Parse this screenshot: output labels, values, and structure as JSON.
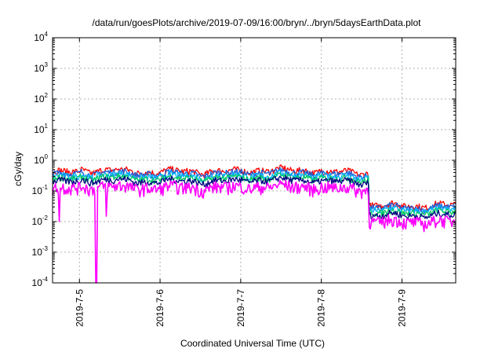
{
  "chart_data": {
    "type": "line",
    "title": "/data/run/goesPlots/archive/2019-07-09/16:00/bryn/../bryn/5daysEarthData.plot",
    "xlabel": "Coordinated Universal Time (UTC)",
    "ylabel": "cGy/day",
    "yscale": "log",
    "ylim": [
      0.0001,
      10000
    ],
    "y_ticks": [
      {
        "base": "10",
        "exp": "-4",
        "value": 0.0001
      },
      {
        "base": "10",
        "exp": "-3",
        "value": 0.001
      },
      {
        "base": "10",
        "exp": "-2",
        "value": 0.01
      },
      {
        "base": "10",
        "exp": "-1",
        "value": 0.1
      },
      {
        "base": "10",
        "exp": "0",
        "value": 1
      },
      {
        "base": "10",
        "exp": "1",
        "value": 10
      },
      {
        "base": "10",
        "exp": "2",
        "value": 100
      },
      {
        "base": "10",
        "exp": "3",
        "value": 1000
      },
      {
        "base": "10",
        "exp": "4",
        "value": 10000
      }
    ],
    "xlim": [
      "2019-07-04 16:00",
      "2019-07-09 16:00"
    ],
    "x_ticks": [
      "2019-7-5",
      "2019-7-6",
      "2019-7-7",
      "2019-7-8",
      "2019-7-9"
    ],
    "x_tick_values": [
      "2019-07-05 00:00",
      "2019-07-06 00:00",
      "2019-07-07 00:00",
      "2019-07-08 00:00",
      "2019-07-09 00:00"
    ],
    "grid": true,
    "series_colors": [
      "#ff0000",
      "#1f5fd6",
      "#00b4ff",
      "#00c864",
      "#000080",
      "#ff00ff"
    ],
    "series_level_factor": [
      1.35,
      1.15,
      0.95,
      0.8,
      0.65,
      0.4
    ],
    "baseline_segments": [
      {
        "from": "2019-07-04 16:00",
        "to": "2019-07-05 00:00",
        "level": 0.3
      },
      {
        "from": "2019-07-05 00:00",
        "to": "2019-07-05 12:00",
        "level": 0.35
      },
      {
        "from": "2019-07-05 12:00",
        "to": "2019-07-07 00:00",
        "level": 0.32
      },
      {
        "from": "2019-07-07 00:00",
        "to": "2019-07-08 00:00",
        "level": 0.35
      },
      {
        "from": "2019-07-08 00:00",
        "to": "2019-07-08 14:00",
        "level": 0.3
      },
      {
        "from": "2019-07-08 14:00",
        "to": "2019-07-09 16:00",
        "level": 0.025
      }
    ],
    "dips": [
      {
        "at": "2019-07-04 18:00",
        "value": 0.01,
        "series": "magenta"
      },
      {
        "at": "2019-07-05 05:00",
        "value": 0.0001,
        "series": "magenta"
      },
      {
        "at": "2019-07-05 08:00",
        "value": 0.015,
        "series": "magenta"
      }
    ]
  }
}
